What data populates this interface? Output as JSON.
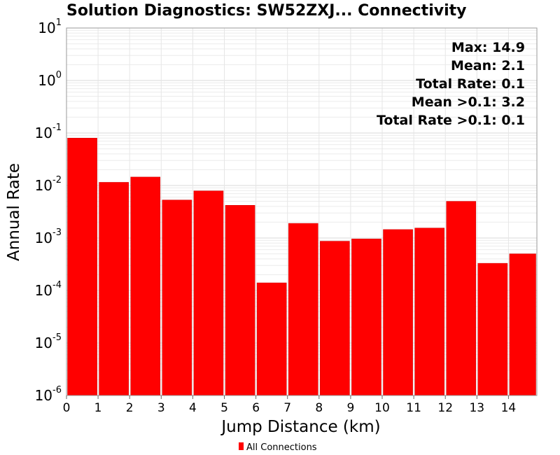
{
  "chart_data": {
    "type": "bar",
    "title": "Solution Diagnostics: SW52ZXJ... Connectivity",
    "xlabel": "Jump Distance (km)",
    "ylabel": "Annual Rate",
    "yscale": "log",
    "ylim": [
      1e-06,
      10
    ],
    "xlim": [
      0,
      14.9
    ],
    "y_ticks": [
      {
        "base": "10",
        "exp": "-6",
        "value": 1e-06
      },
      {
        "base": "10",
        "exp": "-5",
        "value": 1e-05
      },
      {
        "base": "10",
        "exp": "-4",
        "value": 0.0001
      },
      {
        "base": "10",
        "exp": "-3",
        "value": 0.001
      },
      {
        "base": "10",
        "exp": "-2",
        "value": 0.01
      },
      {
        "base": "10",
        "exp": "-1",
        "value": 0.1
      },
      {
        "base": "10",
        "exp": "0",
        "value": 1
      },
      {
        "base": "10",
        "exp": "1",
        "value": 10
      }
    ],
    "x_ticks": [
      "0",
      "1",
      "2",
      "3",
      "4",
      "5",
      "6",
      "7",
      "8",
      "9",
      "10",
      "11",
      "12",
      "13",
      "14"
    ],
    "grid": true,
    "series": [
      {
        "name": "All Connections",
        "color": "#ff0000",
        "bins": [
          {
            "x0": 0,
            "x1": 1,
            "value": 0.08
          },
          {
            "x0": 1,
            "x1": 2,
            "value": 0.0115
          },
          {
            "x0": 2,
            "x1": 3,
            "value": 0.0145
          },
          {
            "x0": 3,
            "x1": 4,
            "value": 0.0053
          },
          {
            "x0": 4,
            "x1": 5,
            "value": 0.0079
          },
          {
            "x0": 5,
            "x1": 6,
            "value": 0.0042
          },
          {
            "x0": 6,
            "x1": 7,
            "value": 0.00014
          },
          {
            "x0": 7,
            "x1": 8,
            "value": 0.0019
          },
          {
            "x0": 8,
            "x1": 9,
            "value": 0.00087
          },
          {
            "x0": 9,
            "x1": 10,
            "value": 0.00096
          },
          {
            "x0": 10,
            "x1": 11,
            "value": 0.00145
          },
          {
            "x0": 11,
            "x1": 12,
            "value": 0.00155
          },
          {
            "x0": 12,
            "x1": 13,
            "value": 0.005
          },
          {
            "x0": 13,
            "x1": 14,
            "value": 0.00033
          },
          {
            "x0": 14,
            "x1": 14.9,
            "value": 0.0005
          }
        ]
      }
    ],
    "annotations": [
      "Max: 14.9",
      "Mean: 2.1",
      "Total Rate: 0.1",
      "Mean >0.1: 3.2",
      "Total Rate >0.1: 0.1"
    ],
    "legend": {
      "position": "bottom-center",
      "entries": [
        "All Connections"
      ]
    }
  }
}
